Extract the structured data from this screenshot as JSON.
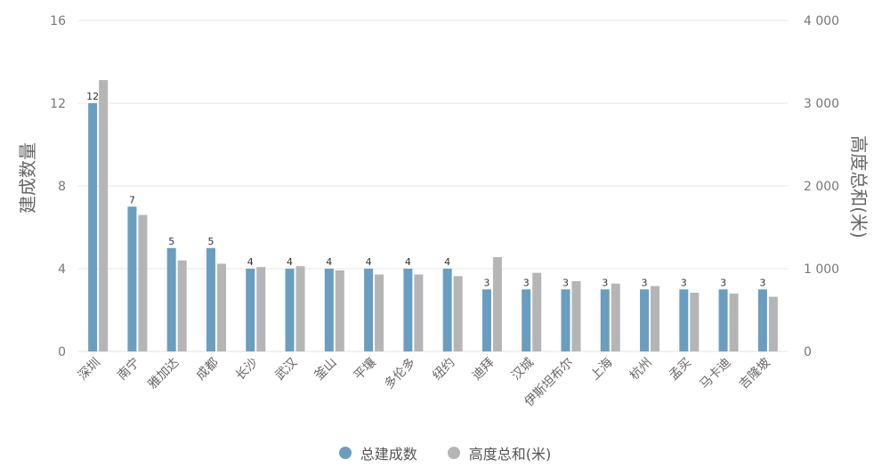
{
  "chart_data": {
    "type": "bar",
    "categories": [
      "深圳",
      "南宁",
      "雅加达",
      "成都",
      "长沙",
      "武汉",
      "釜山",
      "平壤",
      "多伦多",
      "纽约",
      "迪拜",
      "汉城",
      "伊斯坦布尔",
      "上海",
      "杭州",
      "孟买",
      "马卡迪",
      "吉隆坡"
    ],
    "series": [
      {
        "name": "总建成数",
        "axis": "left",
        "values": [
          12,
          7,
          5,
          5,
          4,
          4,
          4,
          4,
          4,
          4,
          3,
          3,
          3,
          3,
          3,
          3,
          3,
          3
        ],
        "data_labels": [
          "12",
          "7",
          "5",
          "5",
          "4",
          "4",
          "4",
          "4",
          "4",
          "4",
          "3",
          "3",
          "3",
          "3",
          "3",
          "3",
          "3",
          "3"
        ]
      },
      {
        "name": "高度总和(米)",
        "axis": "right",
        "values": [
          3280,
          1650,
          1100,
          1060,
          1020,
          1030,
          980,
          930,
          930,
          910,
          1140,
          950,
          850,
          820,
          790,
          710,
          700,
          660
        ]
      }
    ],
    "ylabel": "建成数量",
    "ylabel_right": "高度总和(米)",
    "ylim": [
      0,
      16
    ],
    "ylim_right": [
      0,
      4000
    ],
    "yticks": [
      "0",
      "4",
      "8",
      "12",
      "16"
    ],
    "yticks_right": [
      "0",
      "1 000",
      "2 000",
      "3 000",
      "4 000"
    ],
    "grid": true,
    "legend_position": "bottom-center",
    "colors": {
      "series1": "#6a9ec0",
      "series2": "#b5b5b5"
    }
  }
}
